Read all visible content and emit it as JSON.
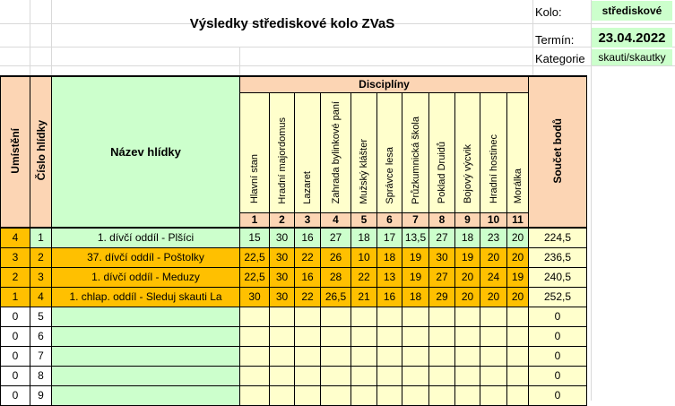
{
  "title": "Výsledky střediskové kolo ZVaS",
  "info": {
    "kolo_label": "Kolo:",
    "kolo_value": "střediskové",
    "termin_label": "Termín:",
    "termin_value": "23.04.2022",
    "kategorie_label": "Kategorie",
    "kategorie_value": "skauti/skautky"
  },
  "headers": {
    "umisteni": "Umístění",
    "cislo": "Číslo hlídky",
    "nazev": "Název hlídky",
    "discipliny": "Disciplíny",
    "soucet": "Součet bodů"
  },
  "disciplines": [
    {
      "name": "Hlavní stan",
      "num": "1"
    },
    {
      "name": "Hradní majordomus",
      "num": "2"
    },
    {
      "name": "Lazaret",
      "num": "3"
    },
    {
      "name": "Zahrada bylinkové paní",
      "num": "4"
    },
    {
      "name": "Mužský klášter",
      "num": "5"
    },
    {
      "name": "Správce lesa",
      "num": "6"
    },
    {
      "name": "Průzkumnická škola",
      "num": "7"
    },
    {
      "name": "Poklad Druidů",
      "num": "8"
    },
    {
      "name": "Bojový výcvik",
      "num": "9"
    },
    {
      "name": "Hradní hostinec",
      "num": "10"
    },
    {
      "name": "Morálka",
      "num": "11"
    }
  ],
  "rows": [
    {
      "place": "4",
      "num": "1",
      "name": "1. dívčí oddíl - Plšíci",
      "scores": [
        "15",
        "30",
        "16",
        "27",
        "18",
        "17",
        "13,5",
        "27",
        "18",
        "23",
        "20"
      ],
      "total": "224,5",
      "style": "green"
    },
    {
      "place": "3",
      "num": "2",
      "name": "37. dívčí oddíl - Poštolky",
      "scores": [
        "22,5",
        "30",
        "22",
        "26",
        "10",
        "18",
        "19",
        "30",
        "19",
        "20",
        "20"
      ],
      "total": "236,5",
      "style": "orange"
    },
    {
      "place": "2",
      "num": "3",
      "name": "1. dívčí oddíl - Meduzy",
      "scores": [
        "22,5",
        "30",
        "16",
        "28",
        "22",
        "13",
        "19",
        "27",
        "20",
        "24",
        "19"
      ],
      "total": "240,5",
      "style": "orange"
    },
    {
      "place": "1",
      "num": "4",
      "name": "1. chlap. oddíl - Sleduj skauti La",
      "scores": [
        "30",
        "30",
        "22",
        "26,5",
        "21",
        "16",
        "18",
        "29",
        "20",
        "20",
        "20"
      ],
      "total": "252,5",
      "style": "orange"
    },
    {
      "place": "0",
      "num": "5",
      "name": "",
      "scores": [
        "",
        "",
        "",
        "",
        "",
        "",
        "",
        "",
        "",
        "",
        ""
      ],
      "total": "0",
      "style": "yellow"
    },
    {
      "place": "0",
      "num": "6",
      "name": "",
      "scores": [
        "",
        "",
        "",
        "",
        "",
        "",
        "",
        "",
        "",
        "",
        ""
      ],
      "total": "0",
      "style": "yellow"
    },
    {
      "place": "0",
      "num": "7",
      "name": "",
      "scores": [
        "",
        "",
        "",
        "",
        "",
        "",
        "",
        "",
        "",
        "",
        ""
      ],
      "total": "0",
      "style": "yellow"
    },
    {
      "place": "0",
      "num": "8",
      "name": "",
      "scores": [
        "",
        "",
        "",
        "",
        "",
        "",
        "",
        "",
        "",
        "",
        ""
      ],
      "total": "0",
      "style": "yellow"
    },
    {
      "place": "0",
      "num": "9",
      "name": "",
      "scores": [
        "",
        "",
        "",
        "",
        "",
        "",
        "",
        "",
        "",
        "",
        ""
      ],
      "total": "0",
      "style": "yellow"
    }
  ]
}
